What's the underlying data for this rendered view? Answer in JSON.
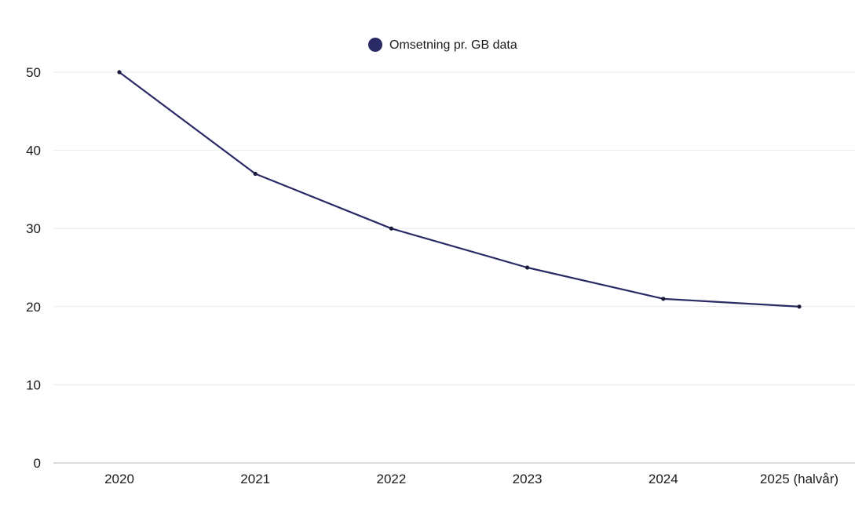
{
  "chart_data": {
    "type": "line",
    "categories": [
      "2020",
      "2021",
      "2022",
      "2023",
      "2024",
      "2025 (halvår)"
    ],
    "series": [
      {
        "name": "Omsetning pr. GB data",
        "values": [
          50,
          37,
          30,
          25,
          21,
          20
        ],
        "color": "#2a2a66"
      }
    ],
    "ylim": [
      0,
      50
    ],
    "yticks": [
      0,
      10,
      20,
      30,
      40,
      50
    ],
    "grid": true,
    "legend_position": "top-center",
    "title": "",
    "xlabel": "",
    "ylabel": ""
  }
}
